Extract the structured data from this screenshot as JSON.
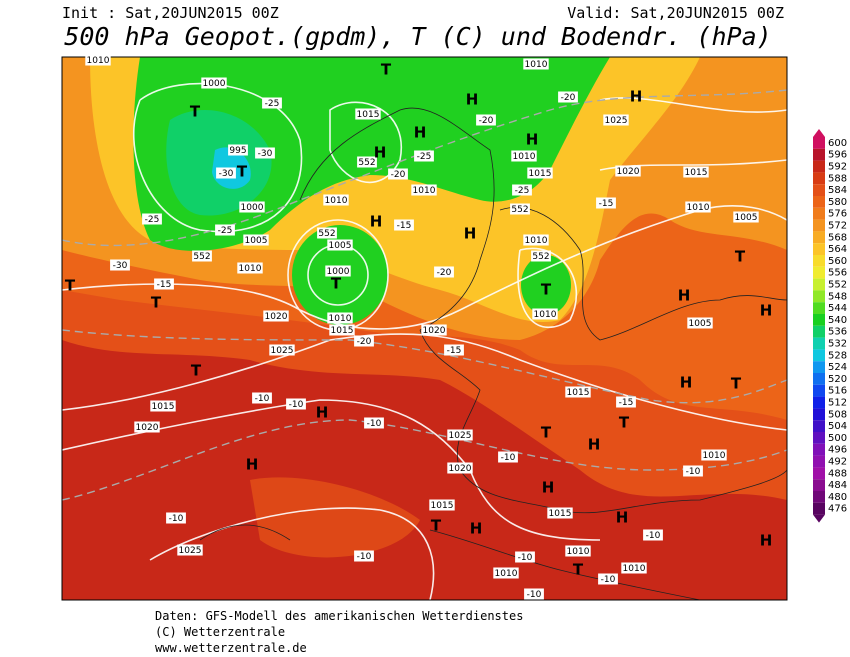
{
  "header": {
    "init": "Init : Sat,20JUN2015 00Z",
    "valid": "Valid: Sat,20JUN2015 00Z",
    "title": "500 hPa Geopot.(gpdm), T (C) und Bodendr. (hPa)"
  },
  "colorbar": {
    "levels": [
      600,
      596,
      592,
      588,
      584,
      580,
      576,
      572,
      568,
      564,
      560,
      556,
      552,
      548,
      544,
      540,
      536,
      532,
      528,
      524,
      520,
      516,
      512,
      508,
      504,
      500,
      496,
      492,
      488,
      484,
      480,
      476
    ],
    "colors": [
      "#d01060",
      "#b8142a",
      "#c82818",
      "#d83c14",
      "#e45018",
      "#ec6418",
      "#f07c1c",
      "#f49420",
      "#f8ac24",
      "#fcc428",
      "#f8dc2c",
      "#f0ec30",
      "#c8f030",
      "#90e828",
      "#50dc20",
      "#18d020",
      "#10d068",
      "#10d0b0",
      "#10c8e0",
      "#1098f0",
      "#1070f0",
      "#1048f0",
      "#1020e8",
      "#2010d8",
      "#4010c8",
      "#6010c0",
      "#8010b8",
      "#9010b0",
      "#a010a8",
      "#8a0c90",
      "#700878",
      "#580460"
    ]
  },
  "map_labels": {
    "isobars": [
      "1010",
      "1000",
      "995",
      "1000",
      "1005",
      "1010",
      "1015",
      "1010",
      "1005",
      "1000",
      "1010",
      "1015",
      "1020",
      "1025",
      "1015",
      "1020",
      "1025",
      "1020",
      "1010",
      "1025",
      "1010",
      "1015",
      "1010",
      "1020",
      "1015",
      "1010",
      "1005",
      "1010",
      "1010",
      "1005",
      "1015",
      "1025",
      "1020",
      "1015",
      "1015",
      "1010",
      "1010",
      "1010",
      "1010"
    ],
    "temperatures": [
      "-25",
      "-30",
      "-30",
      "-25",
      "-25",
      "-30",
      "-15",
      "-20",
      "-25",
      "-20",
      "-25",
      "-20",
      "-15",
      "-15",
      "-20",
      "-20",
      "-15",
      "-10",
      "-10",
      "-10",
      "-10",
      "-15",
      "-10",
      "-10",
      "-10",
      "-10",
      "-10",
      "-10",
      "-10"
    ],
    "contours_552": [
      "552",
      "552",
      "552",
      "552",
      "552"
    ],
    "pressure_centers": [
      "T",
      "T",
      "T",
      "T",
      "T",
      "T",
      "T",
      "T",
      "T",
      "T",
      "T",
      "T",
      "T",
      "T",
      "H",
      "H",
      "H",
      "H",
      "H",
      "H",
      "H",
      "H",
      "H",
      "H",
      "H",
      "H",
      "H",
      "H",
      "H",
      "H",
      "H"
    ]
  },
  "footer": [
    "Daten: GFS-Modell des amerikanischen Wetterdienstes",
    "(C) Wetterzentrale",
    "www.wetterzentrale.de"
  ]
}
